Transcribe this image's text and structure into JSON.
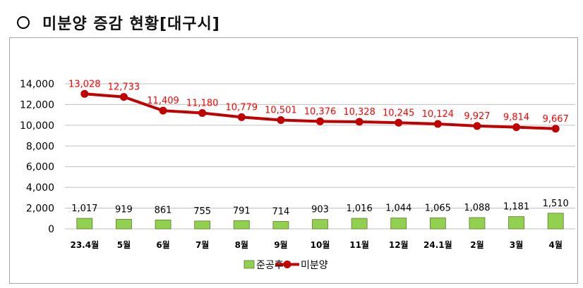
{
  "header": {
    "bullet_icon": "circle-bullet-icon",
    "title": "미분양 증감 현황[대구시]"
  },
  "chart_data": {
    "type": "bar",
    "categories": [
      "23.4월",
      "5월",
      "6월",
      "7월",
      "8월",
      "9월",
      "10월",
      "11월",
      "12월",
      "24.1월",
      "2월",
      "3월",
      "4월"
    ],
    "y_ticks": [
      "0",
      "2,000",
      "4,000",
      "6,000",
      "8,000",
      "10,000",
      "12,000",
      "14,000"
    ],
    "ylim": [
      0,
      14000
    ],
    "grid": true,
    "legend_position": "bottom",
    "series": [
      {
        "name": "준공후",
        "kind": "bar",
        "color": "#92d050",
        "values": [
          1017,
          919,
          861,
          755,
          791,
          714,
          903,
          1016,
          1044,
          1065,
          1088,
          1181,
          1510
        ],
        "labels": [
          "1,017",
          "919",
          "861",
          "755",
          "791",
          "714",
          "903",
          "1,016",
          "1,044",
          "1,065",
          "1,088",
          "1,181",
          "1,510"
        ]
      },
      {
        "name": "미분양",
        "kind": "line",
        "color": "#c00000",
        "label_color": "#ff0000",
        "values": [
          13028,
          12733,
          11409,
          11180,
          10779,
          10501,
          10376,
          10328,
          10245,
          10124,
          9927,
          9814,
          9667
        ],
        "labels": [
          "13,028",
          "12,733",
          "11,409",
          "11,180",
          "10,779",
          "10,501",
          "10,376",
          "10,328",
          "10,245",
          "10,124",
          "9,927",
          "9,814",
          "9,667"
        ]
      }
    ]
  }
}
